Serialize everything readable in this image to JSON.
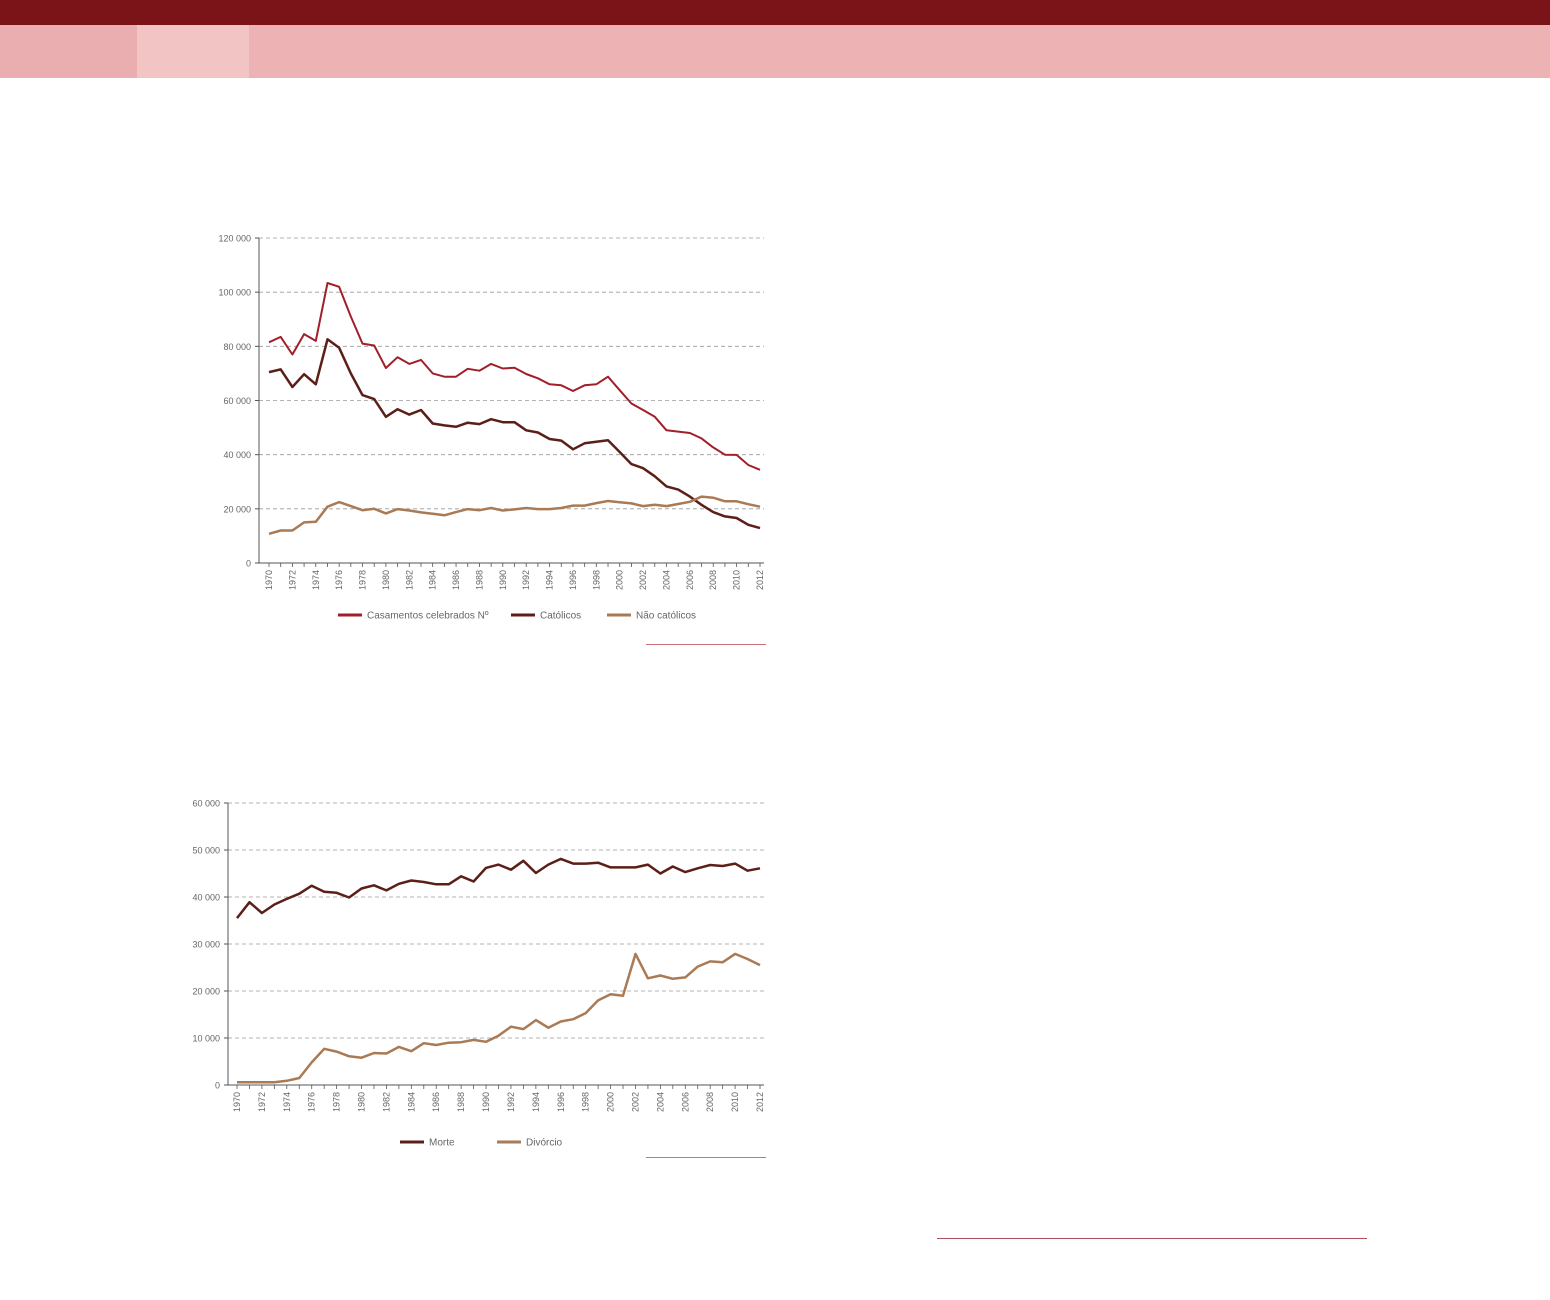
{
  "colors": {
    "header_dark": "#7a1418",
    "header_light": "#edb3b4",
    "tab_active": "#f3c4c4",
    "series_red": "#a11f2a",
    "series_brown": "#5c1f18",
    "series_tan": "#a97a54",
    "grid": "#9a9a9a",
    "axis_text": "#666666"
  },
  "chart_data": [
    {
      "type": "line",
      "x": [
        1970,
        1971,
        1972,
        1973,
        1974,
        1975,
        1976,
        1977,
        1978,
        1979,
        1980,
        1981,
        1982,
        1983,
        1984,
        1985,
        1986,
        1987,
        1988,
        1989,
        1990,
        1991,
        1992,
        1993,
        1994,
        1995,
        1996,
        1997,
        1998,
        1999,
        2000,
        2001,
        2002,
        2003,
        2004,
        2005,
        2006,
        2007,
        2008,
        2009,
        2010,
        2011,
        2012
      ],
      "x_tick_labels": [
        "1970",
        "1972",
        "1974",
        "1976",
        "1978",
        "1980",
        "1982",
        "1984",
        "1986",
        "1988",
        "1990",
        "1992",
        "1994",
        "1996",
        "1998",
        "2000",
        "2002",
        "2004",
        "2006",
        "2008",
        "2010",
        "2012"
      ],
      "ylim": [
        0,
        120000
      ],
      "y_tick_labels": [
        "0",
        "20 000",
        "40 000",
        "60 000",
        "80 000",
        "100 000",
        "120 000"
      ],
      "y_ticks": [
        0,
        20000,
        40000,
        60000,
        80000,
        100000,
        120000
      ],
      "grid": true,
      "legend_position": "bottom",
      "series": [
        {
          "name": "Casamentos celebrados  Nº",
          "color": "#a11f2a",
          "width": 2,
          "values": [
            81500,
            83500,
            77000,
            84500,
            82000,
            103400,
            102000,
            91000,
            81000,
            80300,
            72000,
            76000,
            73500,
            75000,
            70000,
            68800,
            68800,
            71700,
            71000,
            73500,
            71800,
            72100,
            69800,
            68200,
            66000,
            65600,
            63500,
            65600,
            66000,
            68800,
            63800,
            58900,
            56500,
            54000,
            49000,
            48500,
            48000,
            46000,
            42700,
            40000,
            39900,
            36200,
            34400
          ]
        },
        {
          "name": "Católicos",
          "color": "#5c1f18",
          "width": 2.5,
          "values": [
            70500,
            71500,
            65000,
            69700,
            66000,
            82600,
            79500,
            70000,
            62000,
            60500,
            54000,
            56800,
            54800,
            56500,
            51500,
            50800,
            50300,
            51800,
            51300,
            53100,
            52000,
            52000,
            49000,
            48200,
            45800,
            45200,
            42000,
            44200,
            44800,
            45300,
            41000,
            36500,
            35000,
            32000,
            28300,
            27100,
            24500,
            21500,
            18800,
            17200,
            16600,
            14100,
            12900
          ]
        },
        {
          "name": "Não católicos",
          "color": "#a97a54",
          "width": 2.5,
          "values": [
            10800,
            12000,
            12000,
            15000,
            15200,
            20800,
            22500,
            21000,
            19500,
            20000,
            18300,
            19900,
            19400,
            18700,
            18200,
            17600,
            18800,
            19900,
            19500,
            20300,
            19400,
            19800,
            20300,
            19900,
            19900,
            20300,
            21200,
            21200,
            22100,
            22900,
            22400,
            22000,
            21000,
            21500,
            21000,
            21800,
            22600,
            24500,
            24100,
            22800,
            22800,
            21700,
            20800
          ]
        }
      ]
    },
    {
      "type": "line",
      "x": [
        1970,
        1971,
        1972,
        1973,
        1974,
        1975,
        1976,
        1977,
        1978,
        1979,
        1980,
        1981,
        1982,
        1983,
        1984,
        1985,
        1986,
        1987,
        1988,
        1989,
        1990,
        1991,
        1992,
        1993,
        1994,
        1995,
        1996,
        1997,
        1998,
        1999,
        2000,
        2001,
        2002,
        2003,
        2004,
        2005,
        2006,
        2007,
        2008,
        2009,
        2010,
        2011,
        2012
      ],
      "x_tick_labels": [
        "1970",
        "1972",
        "1974",
        "1976",
        "1978",
        "1980",
        "1982",
        "1984",
        "1986",
        "1988",
        "1990",
        "1992",
        "1994",
        "1996",
        "1998",
        "2000",
        "2002",
        "2004",
        "2006",
        "2008",
        "2010",
        "2012"
      ],
      "ylim": [
        0,
        60000
      ],
      "y_tick_labels": [
        "0",
        "10 000",
        "20 000",
        "30 000",
        "40 000",
        "50 000",
        "60 000"
      ],
      "y_ticks": [
        0,
        10000,
        20000,
        30000,
        40000,
        50000,
        60000
      ],
      "grid": true,
      "legend_position": "bottom",
      "series": [
        {
          "name": "Morte",
          "color": "#5c1f18",
          "width": 2.5,
          "values": [
            35500,
            38900,
            36600,
            38400,
            39600,
            40700,
            42400,
            41100,
            40900,
            39900,
            41800,
            42500,
            41400,
            42800,
            43500,
            43200,
            42700,
            42700,
            44400,
            43300,
            46200,
            46900,
            45800,
            47700,
            45100,
            46900,
            48100,
            47100,
            47100,
            47300,
            46300,
            46300,
            46300,
            46900,
            45000,
            46500,
            45300,
            46100,
            46800,
            46600,
            47100,
            45600,
            46100
          ]
        },
        {
          "name": "Divórcio",
          "color": "#a97a54",
          "width": 2.5,
          "values": [
            600,
            600,
            600,
            600,
            900,
            1500,
            4800,
            7700,
            7100,
            6100,
            5800,
            6800,
            6700,
            8100,
            7200,
            8900,
            8500,
            9000,
            9100,
            9600,
            9200,
            10500,
            12400,
            11900,
            13800,
            12200,
            13500,
            14000,
            15300,
            18000,
            19300,
            19000,
            27900,
            22700,
            23300,
            22600,
            22900,
            25200,
            26300,
            26100,
            27900,
            26800,
            25500
          ]
        }
      ]
    }
  ]
}
